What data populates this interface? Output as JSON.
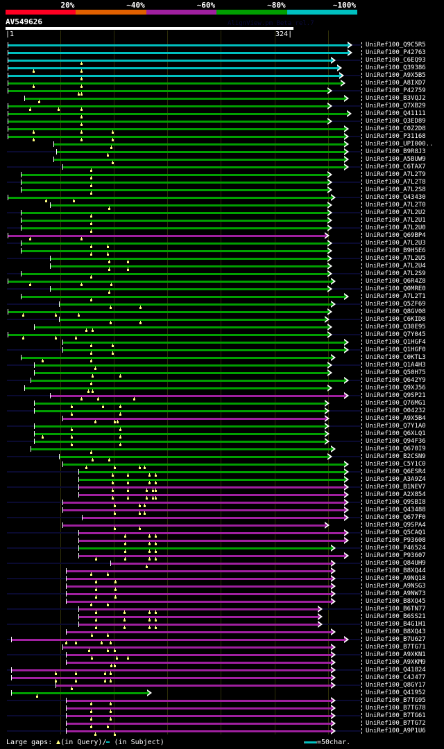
{
  "identity_legend": {
    "labels": [
      "20%",
      "~40%",
      "~60%",
      "~80%",
      "~100%"
    ],
    "colors": [
      "#ff0022",
      "#e06000",
      "#a020a0",
      "#00a000",
      "#00c0c0"
    ]
  },
  "query": {
    "name": "AV549626",
    "start_label": "1",
    "end_label": "324",
    "length": 324
  },
  "credit": "AlignView.pm Beta rel.7",
  "hit_colors": {
    "c": "#00c0c0",
    "g": "#00a000",
    "m": "#a020a0"
  },
  "hits": [
    [
      "UniRef100_Q9C5R5",
      "c",
      1,
      391,
      []
    ],
    [
      "UniRef100_P42763",
      "c",
      1,
      391,
      []
    ],
    [
      "UniRef100_C6EQ93",
      "c",
      1,
      372,
      [
        84
      ]
    ],
    [
      "UniRef100_Q39386",
      "c",
      1,
      379,
      [
        30,
        84
      ]
    ],
    [
      "UniRef100_A9X5B5",
      "c",
      1,
      381,
      [
        84
      ]
    ],
    [
      "UniRef100_A8IXD7",
      "g",
      1,
      383,
      [
        30,
        84
      ]
    ],
    [
      "UniRef100_P42759",
      "g",
      1,
      368,
      [
        81,
        84
      ]
    ],
    [
      "UniRef100_B3VQJ2",
      "g",
      20,
      387,
      [
        36
      ]
    ],
    [
      "UniRef100_Q7XB29",
      "g",
      1,
      368,
      [
        26,
        58,
        84
      ]
    ],
    [
      "UniRef100_Q41111",
      "g",
      1,
      390,
      [
        84
      ]
    ],
    [
      "UniRef100_Q3ED89",
      "g",
      1,
      368,
      [
        84
      ]
    ],
    [
      "UniRef100_C0Z2D8",
      "g",
      1,
      387,
      [
        30,
        84,
        120
      ]
    ],
    [
      "UniRef100_P31168",
      "g",
      1,
      387,
      [
        30,
        84,
        120
      ]
    ],
    [
      "UniRef100_UPI000..",
      "g",
      53,
      387,
      [
        118
      ]
    ],
    [
      "UniRef100_B9R8J3",
      "g",
      56,
      387,
      [
        114
      ]
    ],
    [
      "UniRef100_A5BUW9",
      "g",
      53,
      387,
      [
        120
      ]
    ],
    [
      "UniRef100_C6TAX7",
      "g",
      63,
      387,
      [
        95
      ]
    ],
    [
      "UniRef100_A7L2T9",
      "g",
      16,
      368,
      [
        95
      ]
    ],
    [
      "UniRef100_A7L2T8",
      "g",
      16,
      368,
      [
        95
      ]
    ],
    [
      "UniRef100_A7L2S8",
      "g",
      16,
      368,
      [
        95
      ]
    ],
    [
      "UniRef100_Q43430",
      "g",
      1,
      372,
      [
        44,
        76
      ]
    ],
    [
      "UniRef100_A7L2T0",
      "g",
      49,
      368,
      [
        116
      ]
    ],
    [
      "UniRef100_A7L2U2",
      "g",
      16,
      368,
      [
        95
      ]
    ],
    [
      "UniRef100_A7L2U1",
      "g",
      16,
      368,
      [
        95
      ]
    ],
    [
      "UniRef100_A7L2U0",
      "g",
      16,
      368,
      [
        95
      ]
    ],
    [
      "UniRef100_Q69BP4",
      "m",
      1,
      365,
      [
        26,
        84
      ]
    ],
    [
      "UniRef100_A7L2U3",
      "g",
      16,
      368,
      [
        95,
        114
      ]
    ],
    [
      "UniRef100_B9H5E6",
      "g",
      16,
      368,
      [
        95,
        114
      ]
    ],
    [
      "UniRef100_A7L2U5",
      "g",
      49,
      368,
      [
        116,
        137
      ]
    ],
    [
      "UniRef100_A7L2U4",
      "g",
      49,
      368,
      [
        116,
        137
      ]
    ],
    [
      "UniRef100_A7L2S9",
      "g",
      16,
      368,
      [
        95
      ]
    ],
    [
      "UniRef100_Q6R4Z8",
      "g",
      1,
      372,
      [
        26,
        84,
        118
      ]
    ],
    [
      "UniRef100_Q0MRE0",
      "g",
      49,
      368,
      [
        116
      ]
    ],
    [
      "UniRef100_A7L2T1",
      "g",
      16,
      387,
      [
        95
      ]
    ],
    [
      "UniRef100_Q5ZF69",
      "g",
      59,
      372,
      [
        117,
        151
      ]
    ],
    [
      "UniRef100_Q8GV08",
      "g",
      1,
      368,
      [
        18,
        55,
        81
      ]
    ],
    [
      "UniRef100_C6KID8",
      "g",
      59,
      365,
      [
        117,
        151
      ]
    ],
    [
      "UniRef100_Q30E95",
      "g",
      31,
      368,
      [
        90,
        97
      ]
    ],
    [
      "UniRef100_Q7Y045",
      "g",
      1,
      368,
      [
        18,
        55,
        78
      ]
    ],
    [
      "UniRef100_Q1HGF4",
      "g",
      63,
      387,
      [
        95,
        120
      ]
    ],
    [
      "UniRef100_Q1HGF0",
      "g",
      63,
      387,
      [
        95,
        120
      ]
    ],
    [
      "UniRef100_C0KTL3",
      "g",
      16,
      372,
      [
        40,
        95
      ]
    ],
    [
      "UniRef100_Q1A4H3",
      "g",
      31,
      368,
      [
        100
      ]
    ],
    [
      "UniRef100_Q50H75",
      "g",
      31,
      368,
      [
        97,
        128
      ]
    ],
    [
      "UniRef100_Q642Y9",
      "g",
      27,
      387,
      [
        95
      ]
    ],
    [
      "UniRef100_Q9XJ56",
      "g",
      20,
      368,
      [
        92,
        97
      ]
    ],
    [
      "UniRef100_Q9SP21",
      "m",
      49,
      387,
      [
        84,
        103,
        144
      ]
    ],
    [
      "UniRef100_Q76MG1",
      "g",
      31,
      365,
      [
        73,
        109,
        128
      ]
    ],
    [
      "UniRef100_O04232",
      "g",
      31,
      365,
      [
        73,
        128
      ]
    ],
    [
      "UniRef100_A9X5B4",
      "m",
      63,
      365,
      [
        100,
        122,
        125
      ]
    ],
    [
      "UniRef100_Q7Y1A0",
      "g",
      31,
      365,
      [
        73,
        128
      ]
    ],
    [
      "UniRef100_Q6XLQ1",
      "g",
      31,
      365,
      [
        40,
        73,
        128
      ]
    ],
    [
      "UniRef100_Q94F36",
      "g",
      31,
      365,
      [
        73,
        128
      ]
    ],
    [
      "UniRef100_Q670I9",
      "g",
      27,
      372,
      [
        95
      ]
    ],
    [
      "UniRef100_B2CSN9",
      "g",
      59,
      368,
      [
        97,
        116
      ]
    ],
    [
      "UniRef100_C5Y1C0",
      "g",
      63,
      387,
      [
        90,
        122,
        150,
        156
      ]
    ],
    [
      "UniRef100_Q6ESR4",
      "g",
      81,
      387,
      [
        120,
        137,
        161,
        168
      ]
    ],
    [
      "UniRef100_A3A9Z4",
      "g",
      81,
      387,
      [
        120,
        137,
        161,
        168
      ]
    ],
    [
      "UniRef100_B1NEV7",
      "m",
      81,
      387,
      [
        120,
        137,
        158,
        165,
        168
      ]
    ],
    [
      "UniRef100_A2X854",
      "m",
      81,
      387,
      [
        120,
        137,
        158,
        165,
        168
      ]
    ],
    [
      "UniRef100_Q9SBI8",
      "m",
      63,
      387,
      [
        122,
        150,
        156
      ]
    ],
    [
      "UniRef100_Q43488",
      "m",
      63,
      387,
      [
        122,
        150,
        156
      ]
    ],
    [
      "UniRef100_Q677F0",
      "m",
      85,
      387,
      []
    ],
    [
      "UniRef100_Q9SPA4",
      "m",
      63,
      365,
      [
        122,
        150
      ]
    ],
    [
      "UniRef100_Q5CAQ1",
      "m",
      81,
      387,
      [
        134,
        161,
        168
      ]
    ],
    [
      "UniRef100_P93608",
      "m",
      81,
      387,
      [
        134,
        161,
        168
      ]
    ],
    [
      "UniRef100_P46524",
      "g",
      81,
      372,
      [
        134,
        161,
        168
      ]
    ],
    [
      "UniRef100_P93607",
      "m",
      81,
      387,
      [
        101,
        134,
        161,
        168
      ]
    ],
    [
      "UniRef100_Q84UH9",
      "m",
      117,
      372,
      [
        158
      ]
    ],
    [
      "UniRef100_B8XQ44",
      "m",
      67,
      372,
      [
        95,
        114
      ]
    ],
    [
      "UniRef100_A9NQ18",
      "m",
      67,
      372,
      [
        101,
        123
      ]
    ],
    [
      "UniRef100_A9NSG3",
      "m",
      67,
      372,
      [
        101,
        123
      ]
    ],
    [
      "UniRef100_A9NW73",
      "m",
      67,
      372,
      [
        101,
        123
      ]
    ],
    [
      "UniRef100_B8XQ45",
      "m",
      67,
      372,
      [
        95,
        114
      ]
    ],
    [
      "UniRef100_B6TN77",
      "m",
      81,
      357,
      [
        101,
        133,
        161,
        168
      ]
    ],
    [
      "UniRef100_B6SS21",
      "m",
      81,
      357,
      [
        101,
        133,
        161,
        168
      ]
    ],
    [
      "UniRef100_B4G1H1",
      "m",
      81,
      357,
      [
        101,
        133,
        161,
        168
      ]
    ],
    [
      "UniRef100_B8XQ43",
      "m",
      67,
      372,
      [
        96,
        114
      ]
    ],
    [
      "UniRef100_B7U627",
      "m",
      5,
      387,
      [
        67,
        78,
        107,
        117
      ]
    ],
    [
      "UniRef100_B7TG71",
      "m",
      63,
      372,
      [
        93,
        114,
        122
      ]
    ],
    [
      "UniRef100_A9XKN1",
      "m",
      67,
      372,
      [
        96,
        124,
        137
      ]
    ],
    [
      "UniRef100_A9XKM9",
      "m",
      67,
      372,
      [
        118,
        122
      ]
    ],
    [
      "UniRef100_Q41824",
      "m",
      5,
      372,
      [
        55,
        78,
        111,
        117
      ]
    ],
    [
      "UniRef100_C4J477",
      "m",
      5,
      372,
      [
        55,
        78,
        111,
        117
      ]
    ],
    [
      "UniRef100_Q8GY17",
      "m",
      55,
      372,
      [
        73
      ]
    ],
    [
      "UniRef100_Q41952",
      "g",
      5,
      164,
      [
        34
      ]
    ],
    [
      "UniRef100_B7TG95",
      "m",
      67,
      372,
      [
        95,
        117
      ]
    ],
    [
      "UniRef100_B7TG78",
      "m",
      67,
      372,
      [
        95,
        117
      ]
    ],
    [
      "UniRef100_B7TG61",
      "m",
      67,
      372,
      [
        95,
        117
      ]
    ],
    [
      "UniRef100_B7TG72",
      "m",
      67,
      372,
      [
        95,
        114
      ]
    ],
    [
      "UniRef100_A9P1U6",
      "m",
      67,
      372,
      [
        100,
        122
      ]
    ]
  ],
  "footer": {
    "prefix": "Large gaps: ",
    "query_gap": "(in Query)/",
    "subject_gap": " (in Subject)",
    "scale": "=50char."
  }
}
